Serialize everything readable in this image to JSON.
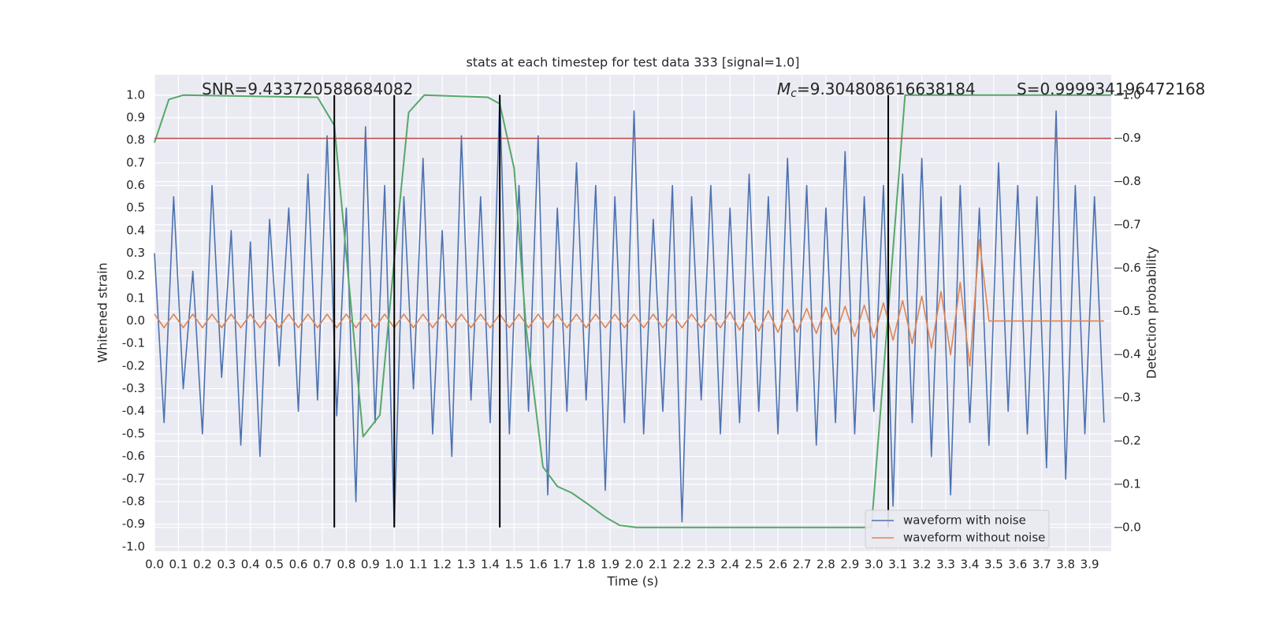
{
  "chart_data": {
    "type": "line",
    "title": "stats at each timestep for test data 333 [signal=1.0]",
    "xlabel": "Time (s)",
    "ylabel": "Whitened strain",
    "y2label": "Detection probability",
    "annotations": [
      {
        "text": "SNR=9.433720588684082"
      },
      {
        "symbol": "M",
        "subscript": "c",
        "text": "=9.304808616638184"
      },
      {
        "text": "S=0.999934196472168"
      }
    ],
    "xlim": [
      0,
      3.99
    ],
    "ylim": [
      -1.02,
      1.09
    ],
    "y2lim": [
      -0.055,
      1.047
    ],
    "xticks": [
      {
        "value": 0,
        "label": "0.0"
      },
      0.1,
      0.2,
      0.3,
      0.4,
      0.5,
      0.6,
      0.7,
      0.8,
      0.9,
      {
        "value": 1,
        "label": "1.0"
      },
      1.1,
      1.2,
      1.3,
      1.4,
      1.5,
      1.6,
      1.7,
      1.8,
      1.9,
      {
        "value": 2,
        "label": "2.0"
      },
      2.1,
      2.2,
      2.3,
      2.4,
      2.5,
      2.6,
      2.7,
      2.8,
      2.9,
      {
        "value": 3,
        "label": "3.0"
      },
      3.1,
      3.2,
      3.3,
      3.4,
      3.5,
      3.6,
      3.7,
      3.8,
      3.9
    ],
    "yticks": [
      {
        "value": -1,
        "label": "-1.0"
      },
      -0.9,
      -0.8,
      -0.7,
      -0.6,
      -0.5,
      -0.4,
      -0.3,
      -0.2,
      -0.1,
      {
        "value": 0,
        "label": "0.0"
      },
      0.1,
      0.2,
      0.3,
      0.4,
      0.5,
      0.6,
      0.7,
      0.8,
      0.9,
      {
        "value": 1,
        "label": "1.0"
      }
    ],
    "y2ticks": [
      {
        "value": 0,
        "label": "0.0"
      },
      0.1,
      0.2,
      0.3,
      0.4,
      0.5,
      0.6,
      0.7,
      0.8,
      0.9,
      {
        "value": 1,
        "label": "1.0"
      }
    ],
    "grid": true,
    "legend": "lower right",
    "x": [
      0,
      0.04,
      0.08,
      0.12,
      0.16,
      0.2,
      0.24,
      0.28,
      0.32,
      0.36,
      0.4,
      0.44,
      0.48,
      0.52,
      0.56,
      0.6,
      0.64,
      0.68,
      0.72,
      0.76,
      0.8,
      0.84,
      0.88,
      0.92,
      0.96,
      1,
      1.04,
      1.08,
      1.12,
      1.16,
      1.2,
      1.24,
      1.28,
      1.32,
      1.36,
      1.4,
      1.44,
      1.48,
      1.52,
      1.56,
      1.6,
      1.64,
      1.68,
      1.72,
      1.76,
      1.8,
      1.84,
      1.88,
      1.92,
      1.96,
      2,
      2.04,
      2.08,
      2.12,
      2.16,
      2.2,
      2.24,
      2.28,
      2.32,
      2.36,
      2.4,
      2.44,
      2.48,
      2.52,
      2.56,
      2.6,
      2.64,
      2.68,
      2.72,
      2.76,
      2.8,
      2.84,
      2.88,
      2.92,
      2.96,
      3,
      3.04,
      3.08,
      3.12,
      3.16,
      3.2,
      3.24,
      3.28,
      3.32,
      3.36,
      3.4,
      3.44,
      3.48,
      3.52,
      3.56,
      3.6,
      3.64,
      3.68,
      3.72,
      3.76,
      3.8,
      3.84,
      3.88,
      3.92,
      3.96
    ],
    "series": [
      {
        "name": "waveform with noise",
        "color": "#4c72b0",
        "values": [
          0.3,
          -0.45,
          0.55,
          -0.3,
          0.22,
          -0.5,
          0.6,
          -0.25,
          0.4,
          -0.55,
          0.35,
          -0.6,
          0.45,
          -0.2,
          0.5,
          -0.4,
          0.65,
          -0.35,
          0.82,
          -0.42,
          0.5,
          -0.8,
          0.86,
          -0.45,
          0.6,
          -0.91,
          0.55,
          -0.3,
          0.72,
          -0.5,
          0.4,
          -0.6,
          0.82,
          -0.35,
          0.55,
          -0.45,
          1,
          -0.5,
          0.6,
          -0.4,
          0.82,
          -0.77,
          0.5,
          -0.4,
          0.7,
          -0.35,
          0.6,
          -0.75,
          0.55,
          -0.45,
          0.93,
          -0.5,
          0.45,
          -0.4,
          0.6,
          -0.89,
          0.55,
          -0.35,
          0.6,
          -0.5,
          0.5,
          -0.45,
          0.65,
          -0.4,
          0.55,
          -0.5,
          0.72,
          -0.4,
          0.6,
          -0.55,
          0.5,
          -0.45,
          0.75,
          -0.5,
          0.55,
          -0.4,
          0.6,
          -0.82,
          0.65,
          -0.45,
          0.72,
          -0.6,
          0.55,
          -0.77,
          0.6,
          -0.45,
          0.5,
          -0.55,
          0.7,
          -0.4,
          0.6,
          -0.5,
          0.55,
          -0.65,
          0.93,
          -0.7,
          0.6,
          -0.5,
          0.55,
          -0.45
        ]
      },
      {
        "name": "waveform without noise",
        "color": "#dd8452",
        "values": [
          0.03,
          -0.03,
          0.03,
          -0.03,
          0.03,
          -0.03,
          0.03,
          -0.03,
          0.03,
          -0.03,
          0.03,
          -0.03,
          0.03,
          -0.03,
          0.03,
          -0.03,
          0.03,
          -0.03,
          0.03,
          -0.03,
          0.03,
          -0.03,
          0.03,
          -0.03,
          0.03,
          -0.03,
          0.03,
          -0.03,
          0.03,
          -0.03,
          0.03,
          -0.03,
          0.03,
          -0.03,
          0.03,
          -0.03,
          0.03,
          -0.03,
          0.03,
          -0.03,
          0.03,
          -0.03,
          0.03,
          -0.03,
          0.03,
          -0.03,
          0.03,
          -0.03,
          0.03,
          -0.03,
          0.03,
          -0.03,
          0.03,
          -0.03,
          0.03,
          -0.03,
          0.03,
          -0.03,
          0.03,
          -0.03,
          0.04,
          -0.04,
          0.04,
          -0.045,
          0.045,
          -0.05,
          0.05,
          -0.05,
          0.055,
          -0.055,
          0.06,
          -0.06,
          0.065,
          -0.07,
          0.07,
          -0.075,
          0.08,
          -0.085,
          0.09,
          -0.1,
          0.11,
          -0.12,
          0.13,
          -0.15,
          0.17,
          -0.2,
          0.36,
          0,
          0,
          0,
          0,
          0,
          0,
          0,
          0,
          0,
          0,
          0,
          0,
          0
        ]
      }
    ],
    "detection_probability": {
      "color": "#55a868",
      "axis": "y2",
      "x": [
        0,
        0.06,
        0.12,
        0.68,
        0.75,
        0.87,
        0.94,
        1,
        1.06,
        1.125,
        1.39,
        1.44,
        1.5,
        1.55,
        1.62,
        1.68,
        1.74,
        1.81,
        1.88,
        1.94,
        2.01,
        2.99,
        3.06,
        3.13,
        3.99
      ],
      "values": [
        0.89,
        0.99,
        1,
        0.995,
        0.93,
        0.21,
        0.26,
        0.62,
        0.96,
        1,
        0.995,
        0.98,
        0.83,
        0.46,
        0.14,
        0.095,
        0.08,
        0.053,
        0.024,
        0.005,
        0,
        0,
        0.5,
        1,
        1
      ]
    },
    "threshold": {
      "value": 0.9,
      "axis": "y2",
      "color": "#c44e52"
    },
    "vlines": {
      "values": [
        0.75,
        1,
        1.44,
        3.06
      ],
      "color": "#000000"
    }
  }
}
